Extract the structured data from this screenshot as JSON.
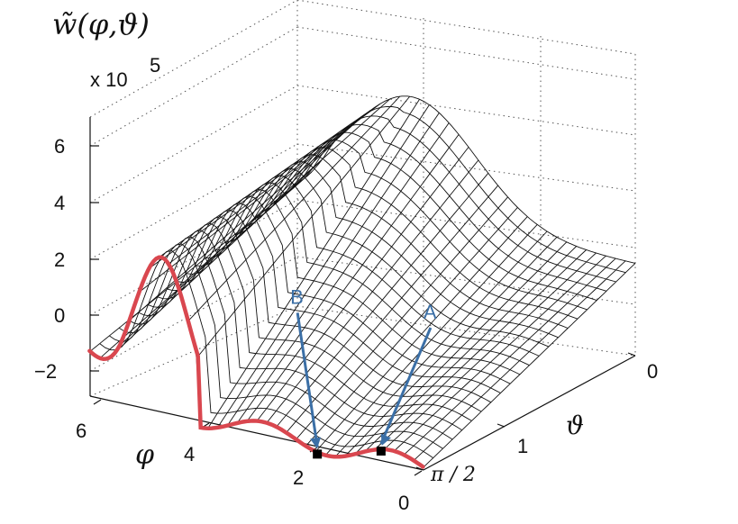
{
  "chart_data": {
    "type": "surface",
    "title": "w̃(φ,ϑ)",
    "z_multiplier": "x 10",
    "z_exponent": "5",
    "axes": {
      "z": {
        "ticks": [
          "6",
          "4",
          "2",
          "0",
          "−2"
        ],
        "values": [
          6,
          4,
          2,
          0,
          -2
        ],
        "range": [
          -3,
          7
        ]
      },
      "phi": {
        "label": "φ",
        "ticks": [
          "6",
          "4",
          "2",
          "0"
        ],
        "values": [
          6,
          4,
          2,
          0
        ],
        "range": [
          0,
          6.28
        ]
      },
      "theta": {
        "label": "ϑ",
        "ticks": [
          "0",
          "1",
          "π / 2"
        ],
        "values": [
          0,
          1,
          1.5708
        ],
        "range": [
          0,
          1.5708
        ]
      }
    },
    "grid": true,
    "highlight_curve": {
      "description_color": "#d9474f",
      "at_theta": 1.5708
    },
    "annotations": [
      {
        "label": "B",
        "phi": 2.0,
        "theta": 1.5708,
        "z": -3.2
      },
      {
        "label": "A",
        "phi": 0.8,
        "theta": 1.5708,
        "z": -3.3
      }
    ],
    "colors": {
      "mesh": "#111111",
      "curve": "#d9474f",
      "arrow": "#3b6fa6"
    }
  }
}
